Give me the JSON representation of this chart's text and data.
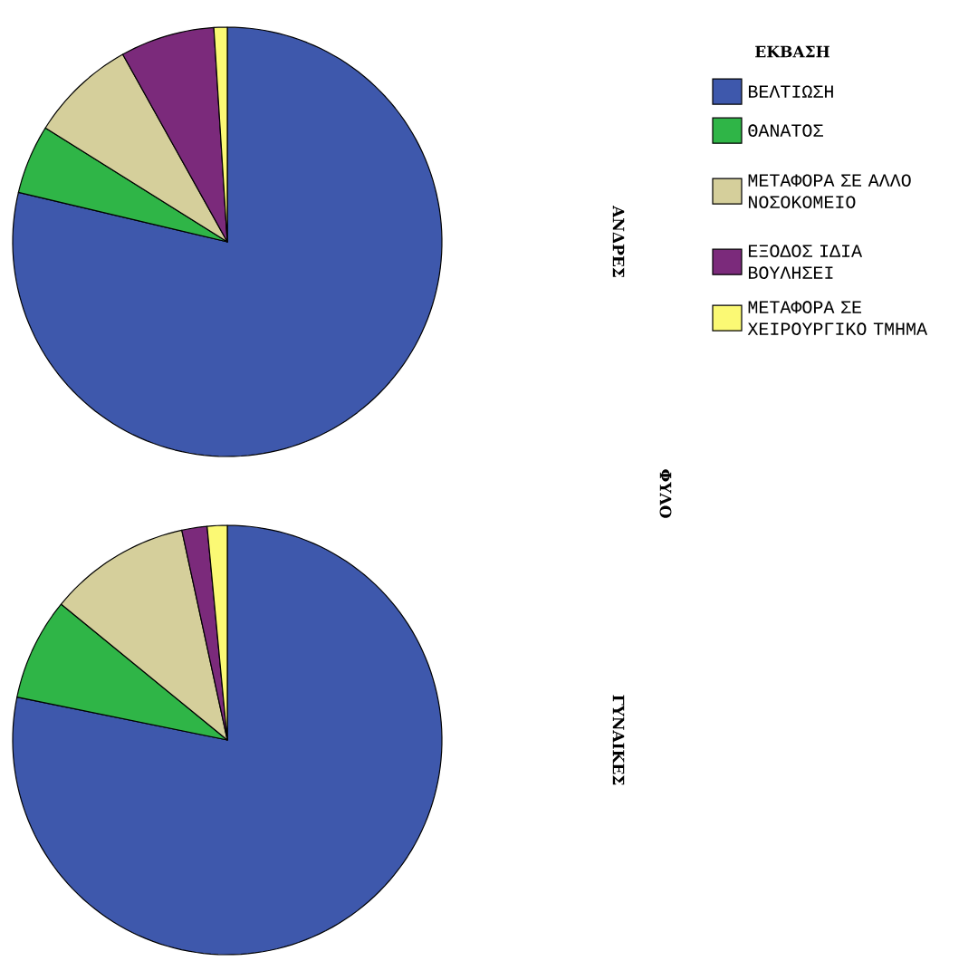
{
  "chart_data": [
    {
      "type": "pie",
      "title": "ΑΝΔΡΕΣ",
      "legend_title": "ΕΚΒΑΣΗ",
      "legend": "right",
      "annotations": [
        "ΦΥΛΟ"
      ],
      "categories": [
        "ΒΕΛΤΙΩΣΗ",
        "ΘΑΝΑΤΟΣ",
        "ΜΕΤΑΦΟΡΑ ΣΕ ΑΛΛΟ ΝΟΣΟΚΟΜΕΙΟ",
        "ΕΞΟΔΟΣ ΙΔΙΑ ΒΟΥΛΗΣΕΙ",
        "ΜΕΤΑΦΟΡΑ ΣΕ ΧΕΙΡΟΥΡΓΙΚΟ ΤΜΗΜΑ"
      ],
      "values": [
        78.7,
        5.2,
        8.0,
        7.1,
        1.0
      ],
      "colors": [
        "#3e58ac",
        "#2fb547",
        "#d5cf9b",
        "#7b2a7b",
        "#fbf974"
      ]
    },
    {
      "type": "pie",
      "title": "ΓΥΝΑΙΚΕΣ",
      "values": [
        78.2,
        7.7,
        10.7,
        1.9,
        1.5
      ],
      "categories": [
        null,
        null,
        null,
        null,
        null
      ],
      "colors": [
        "#3e58ac",
        "#2fb547",
        "#d5cf9b",
        "#7b2a7b",
        "#fbf974"
      ]
    }
  ]
}
